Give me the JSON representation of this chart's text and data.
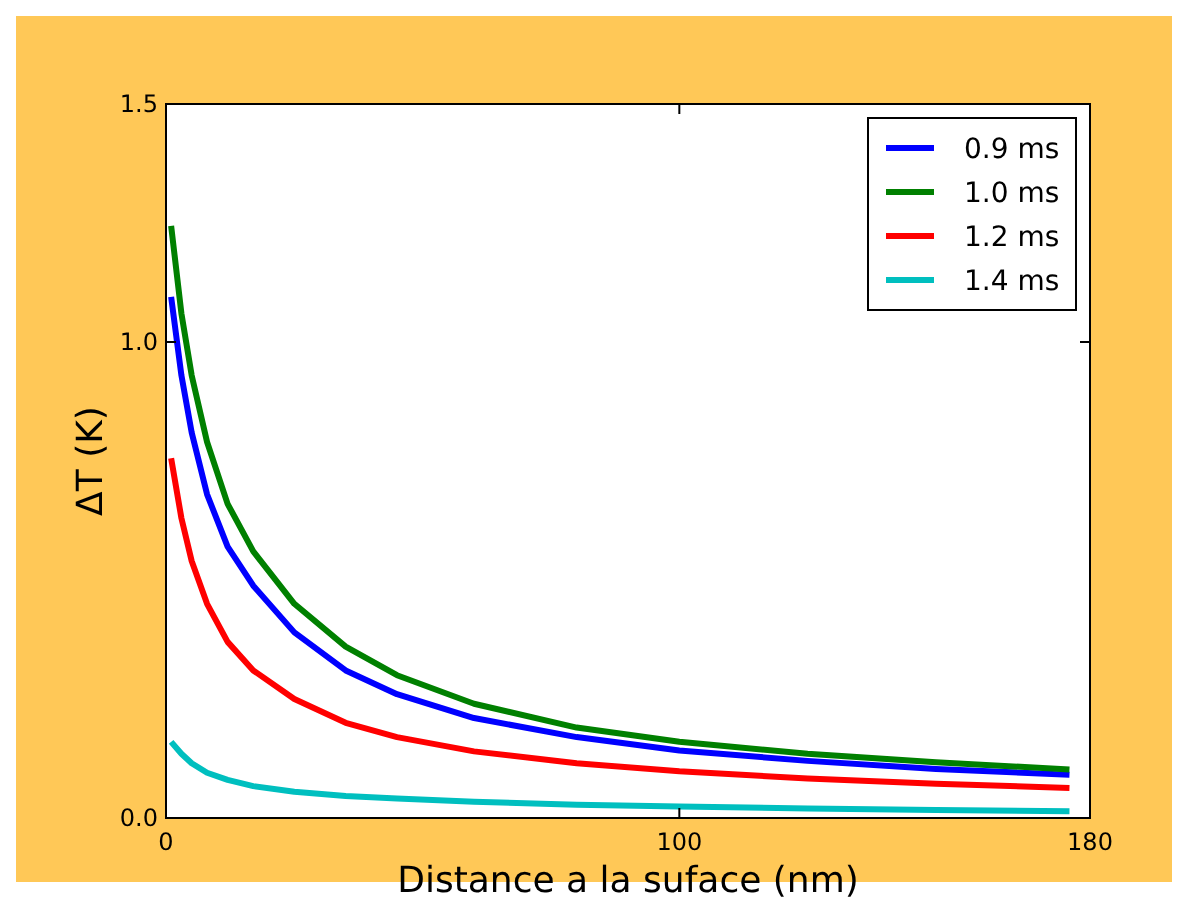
{
  "chart_data": {
    "type": "line",
    "xlabel": "Distance a la suface (nm)",
    "ylabel": "ΔT (K)",
    "x": [
      1,
      3,
      5,
      8,
      12,
      17,
      25,
      35,
      45,
      60,
      80,
      100,
      125,
      150,
      176
    ],
    "xlim": [
      0,
      180
    ],
    "xticks": [
      0,
      100,
      180
    ],
    "ylim": [
      0,
      1.5
    ],
    "yticks": [
      {
        "value": 0,
        "label": "0.0"
      },
      {
        "value": 1,
        "label": "1.0"
      },
      1.5
    ],
    "grid": false,
    "legend": "top right",
    "marker": "none",
    "line_style": "solid",
    "series": [
      {
        "name": "0.9 ms",
        "color": "#0000ff",
        "values": [
          1.095,
          0.93,
          0.81,
          0.68,
          0.57,
          0.488,
          0.39,
          0.31,
          0.26,
          0.21,
          0.17,
          0.142,
          0.12,
          0.103,
          0.091
        ]
      },
      {
        "name": "1.0 ms",
        "color": "#008000",
        "values": [
          1.244,
          1.06,
          0.93,
          0.79,
          0.66,
          0.56,
          0.45,
          0.36,
          0.3,
          0.24,
          0.19,
          0.16,
          0.135,
          0.117,
          0.102
        ]
      },
      {
        "name": "1.2 ms",
        "color": "#ff0000",
        "values": [
          0.756,
          0.63,
          0.54,
          0.45,
          0.37,
          0.31,
          0.25,
          0.2,
          0.17,
          0.14,
          0.115,
          0.098,
          0.083,
          0.072,
          0.063
        ]
      },
      {
        "name": "1.4 ms",
        "color": "#00bfbf",
        "values": [
          0.16,
          0.135,
          0.115,
          0.095,
          0.08,
          0.067,
          0.055,
          0.046,
          0.041,
          0.034,
          0.028,
          0.024,
          0.02,
          0.017,
          0.014
        ]
      }
    ]
  }
}
